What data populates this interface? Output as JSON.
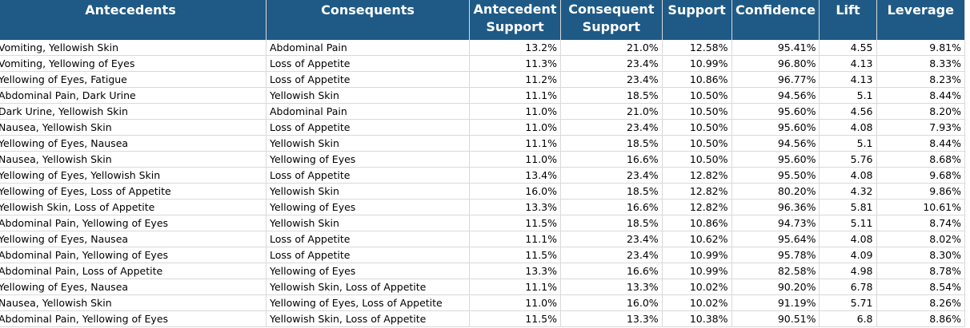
{
  "headers": [
    "Antecedents",
    "Consequents",
    "Antecedent Support",
    "Consequent Support",
    "Support",
    "Confidence",
    "Lift",
    "Leverage"
  ],
  "rows": [
    [
      "Vomiting, Yellowish Skin",
      "Abdominal Pain",
      "13.2%",
      "21.0%",
      "12.58%",
      "95.41%",
      "4.55",
      "9.81%"
    ],
    [
      "Vomiting, Yellowing of Eyes",
      "Loss of Appetite",
      "11.3%",
      "23.4%",
      "10.99%",
      "96.80%",
      "4.13",
      "8.33%"
    ],
    [
      "Yellowing of Eyes, Fatigue",
      "Loss of Appetite",
      "11.2%",
      "23.4%",
      "10.86%",
      "96.77%",
      "4.13",
      "8.23%"
    ],
    [
      "Abdominal Pain, Dark Urine",
      "Yellowish Skin",
      "11.1%",
      "18.5%",
      "10.50%",
      "94.56%",
      "5.1",
      "8.44%"
    ],
    [
      "Dark Urine, Yellowish Skin",
      "Abdominal Pain",
      "11.0%",
      "21.0%",
      "10.50%",
      "95.60%",
      "4.56",
      "8.20%"
    ],
    [
      "Nausea, Yellowish Skin",
      "Loss of Appetite",
      "11.0%",
      "23.4%",
      "10.50%",
      "95.60%",
      "4.08",
      "7.93%"
    ],
    [
      "Yellowing of Eyes, Nausea",
      "Yellowish Skin",
      "11.1%",
      "18.5%",
      "10.50%",
      "94.56%",
      "5.1",
      "8.44%"
    ],
    [
      "Nausea, Yellowish Skin",
      "Yellowing of Eyes",
      "11.0%",
      "16.6%",
      "10.50%",
      "95.60%",
      "5.76",
      "8.68%"
    ],
    [
      "Yellowing of Eyes, Yellowish Skin",
      "Loss of Appetite",
      "13.4%",
      "23.4%",
      "12.82%",
      "95.50%",
      "4.08",
      "9.68%"
    ],
    [
      "Yellowing of Eyes, Loss of Appetite",
      "Yellowish Skin",
      "16.0%",
      "18.5%",
      "12.82%",
      "80.20%",
      "4.32",
      "9.86%"
    ],
    [
      "Yellowish Skin, Loss of Appetite",
      "Yellowing of Eyes",
      "13.3%",
      "16.6%",
      "12.82%",
      "96.36%",
      "5.81",
      "10.61%"
    ],
    [
      "Abdominal Pain, Yellowing of Eyes",
      "Yellowish Skin",
      "11.5%",
      "18.5%",
      "10.86%",
      "94.73%",
      "5.11",
      "8.74%"
    ],
    [
      "Yellowing of Eyes, Nausea",
      "Loss of Appetite",
      "11.1%",
      "23.4%",
      "10.62%",
      "95.64%",
      "4.08",
      "8.02%"
    ],
    [
      "Abdominal Pain, Yellowing of Eyes",
      "Loss of Appetite",
      "11.5%",
      "23.4%",
      "10.99%",
      "95.78%",
      "4.09",
      "8.30%"
    ],
    [
      "Abdominal Pain, Loss of Appetite",
      "Yellowing of Eyes",
      "13.3%",
      "16.6%",
      "10.99%",
      "82.58%",
      "4.98",
      "8.78%"
    ],
    [
      "Yellowing of Eyes, Nausea",
      "Yellowish Skin, Loss of Appetite",
      "11.1%",
      "13.3%",
      "10.02%",
      "90.20%",
      "6.78",
      "8.54%"
    ],
    [
      "Nausea, Yellowish Skin",
      "Yellowing of Eyes, Loss of Appetite",
      "11.0%",
      "16.0%",
      "10.02%",
      "91.19%",
      "5.71",
      "8.26%"
    ],
    [
      "Abdominal Pain, Yellowing of Eyes",
      "Yellowish Skin, Loss of Appetite",
      "11.5%",
      "13.3%",
      "10.38%",
      "90.51%",
      "6.8",
      "8.86%"
    ]
  ],
  "colors": {
    "header_bg": "#1f5a86",
    "header_text": "#ffffff",
    "gridline": "#d9d9d9"
  }
}
